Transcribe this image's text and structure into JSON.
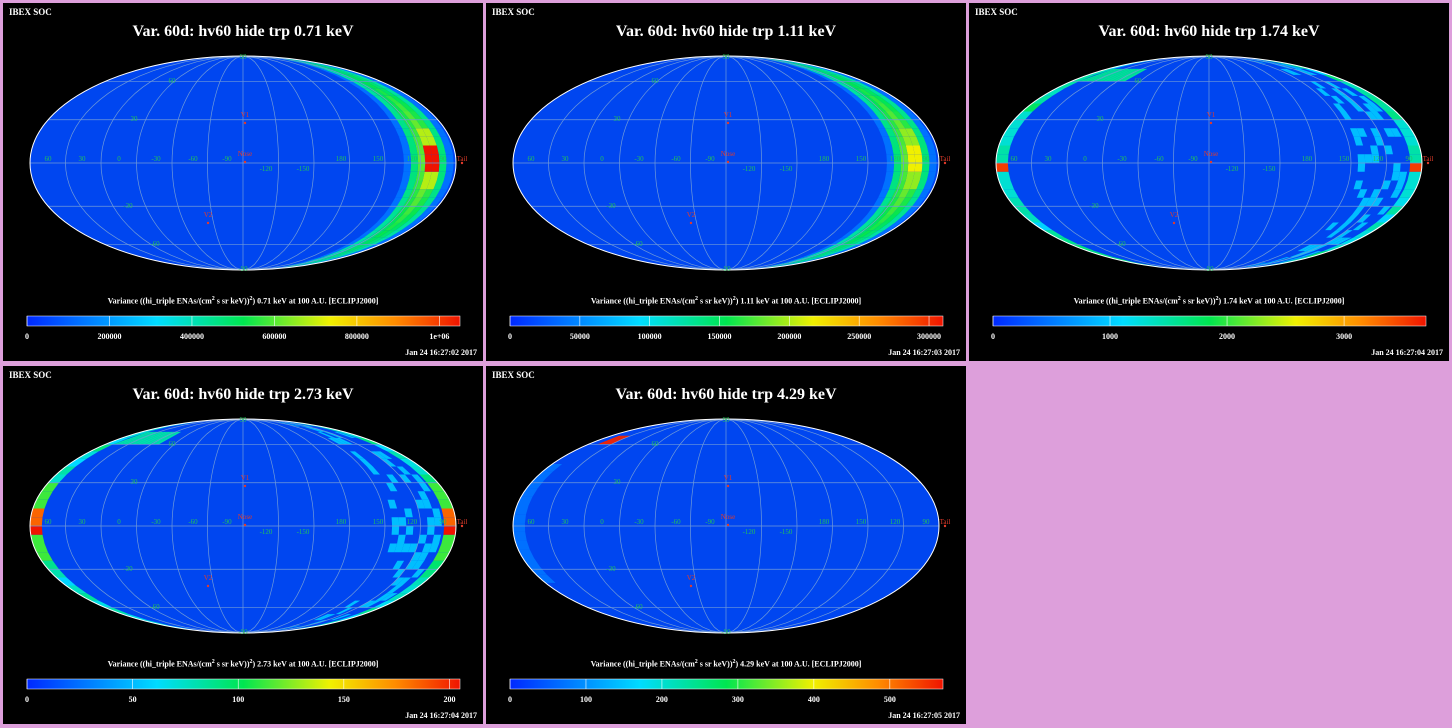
{
  "colors": {
    "background": "#dd9fdb",
    "panel": "#000000",
    "sky": "#0046f0",
    "grid_lines": "#6f9ad8",
    "grid_labels": "#22c25a",
    "markers": "#e23b2b"
  },
  "chart_data": [
    {
      "type": "heatmap",
      "header": "IBEX SOC",
      "title": "Var. 60d: hv60 hide trp 0.71 keV",
      "colorbar_label": "Variance ((hi_triple ENAs/(cm",
      "colorbar_label_sup": "2",
      "colorbar_label_mid": " s sr keV))",
      "colorbar_label_sup2": "2",
      "colorbar_label_end": ") 0.71 keV at 100 A.U. [ECLIPJ2000]",
      "colorbar_range": [
        0,
        1050000
      ],
      "colorbar_ticks": [
        0,
        200000,
        400000,
        600000,
        800000,
        1000000
      ],
      "colorbar_tick_labels": [
        "0",
        "200000",
        "400000",
        "600000",
        "800000",
        "1e+06"
      ],
      "timestamp": "Jan 24 16:27:02 2017",
      "projection": "Mollweide (all-sky)",
      "longitude_labels": [
        "60",
        "30",
        "0",
        "-30",
        "-60",
        "-90",
        "-120",
        "-150",
        "180",
        "150",
        "120",
        "90"
      ],
      "latitude_labels": [
        "60",
        "30",
        "-30",
        "-60",
        "90",
        "-90"
      ],
      "markers": [
        "V1",
        "Nose",
        "V2",
        "Tail"
      ],
      "grid": true,
      "feature": "bright ring of elevated variance along the meridian near longitude -150 to 180, peak near latitude 0"
    },
    {
      "type": "heatmap",
      "header": "IBEX SOC",
      "title": "Var. 60d: hv60 hide trp 1.11 keV",
      "colorbar_label": "Variance ((hi_triple ENAs/(cm",
      "colorbar_label_sup": "2",
      "colorbar_label_mid": " s sr keV))",
      "colorbar_label_sup2": "2",
      "colorbar_label_end": ") 1.11 keV at 100 A.U. [ECLIPJ2000]",
      "colorbar_range": [
        0,
        310000
      ],
      "colorbar_ticks": [
        0,
        50000,
        100000,
        150000,
        200000,
        250000,
        300000
      ],
      "colorbar_tick_labels": [
        "0",
        "50000",
        "100000",
        "150000",
        "200000",
        "250000",
        "300000"
      ],
      "timestamp": "Jan 24 16:27:03 2017",
      "projection": "Mollweide (all-sky)",
      "longitude_labels": [
        "60",
        "30",
        "0",
        "-30",
        "-60",
        "-90",
        "-120",
        "-150",
        "180",
        "150",
        "120",
        "90"
      ],
      "latitude_labels": [
        "60",
        "30",
        "-30",
        "-60",
        "90",
        "-90"
      ],
      "markers": [
        "V1",
        "Nose",
        "V2",
        "Tail"
      ],
      "grid": true,
      "feature": "bright ring of elevated variance along the meridian near longitude -150 to 180"
    },
    {
      "type": "heatmap",
      "header": "IBEX SOC",
      "title": "Var. 60d: hv60 hide trp 1.74 keV",
      "colorbar_label": "Variance ((hi_triple ENAs/(cm",
      "colorbar_label_sup": "2",
      "colorbar_label_mid": " s sr keV))",
      "colorbar_label_sup2": "2",
      "colorbar_label_end": ") 1.74 keV at 100 A.U. [ECLIPJ2000]",
      "colorbar_range": [
        0,
        3700
      ],
      "colorbar_ticks": [
        0,
        1000,
        2000,
        3000
      ],
      "colorbar_tick_labels": [
        "0",
        "1000",
        "2000",
        "3000"
      ],
      "timestamp": "Jan 24 16:27:04 2017",
      "projection": "Mollweide (all-sky)",
      "longitude_labels": [
        "60",
        "30",
        "0",
        "-30",
        "-60",
        "-90",
        "-120",
        "-150",
        "180",
        "150",
        "120",
        "90"
      ],
      "latitude_labels": [
        "60",
        "30",
        "-30",
        "-60",
        "90",
        "-90"
      ],
      "markers": [
        "V1",
        "Nose",
        "V2",
        "Tail"
      ],
      "grid": true,
      "feature": "elevated variance along left and right limbs of the map"
    },
    {
      "type": "heatmap",
      "header": "IBEX SOC",
      "title": "Var. 60d: hv60 hide trp 2.73 keV",
      "colorbar_label": "Variance ((hi_triple ENAs/(cm",
      "colorbar_label_sup": "2",
      "colorbar_label_mid": " s sr keV))",
      "colorbar_label_sup2": "2",
      "colorbar_label_end": ") 2.73 keV at 100 A.U. [ECLIPJ2000]",
      "colorbar_range": [
        0,
        205
      ],
      "colorbar_ticks": [
        0,
        50,
        100,
        150,
        200
      ],
      "colorbar_tick_labels": [
        "0",
        "50",
        "100",
        "150",
        "200"
      ],
      "timestamp": "Jan 24 16:27:04 2017",
      "projection": "Mollweide (all-sky)",
      "longitude_labels": [
        "60",
        "30",
        "0",
        "-30",
        "-60",
        "-90",
        "-120",
        "-150",
        "180",
        "150",
        "120",
        "90"
      ],
      "latitude_labels": [
        "60",
        "30",
        "-30",
        "-60",
        "90",
        "-90"
      ],
      "markers": [
        "V1",
        "Nose",
        "V2",
        "Tail"
      ],
      "grid": true,
      "feature": "elevated variance along left and right limbs, peak at left limb near latitude 0"
    },
    {
      "type": "heatmap",
      "header": "IBEX SOC",
      "title": "Var. 60d: hv60 hide trp 4.29 keV",
      "colorbar_label": "Variance ((hi_triple ENAs/(cm",
      "colorbar_label_sup": "2",
      "colorbar_label_mid": " s sr keV))",
      "colorbar_label_sup2": "2",
      "colorbar_label_end": ") 4.29 keV at 100 A.U. [ECLIPJ2000]",
      "colorbar_range": [
        0,
        570
      ],
      "colorbar_ticks": [
        0,
        100,
        200,
        300,
        400,
        500
      ],
      "colorbar_tick_labels": [
        "0",
        "100",
        "200",
        "300",
        "400",
        "500"
      ],
      "timestamp": "Jan 24 16:27:05 2017",
      "projection": "Mollweide (all-sky)",
      "longitude_labels": [
        "60",
        "30",
        "0",
        "-30",
        "-60",
        "-90",
        "-120",
        "-150",
        "180",
        "150",
        "120",
        "90"
      ],
      "latitude_labels": [
        "60",
        "30",
        "-30",
        "-60",
        "90",
        "-90"
      ],
      "markers": [
        "V1",
        "Nose",
        "V2",
        "Tail"
      ],
      "grid": true,
      "feature": "mostly uniform low variance, small red patch near top-left limb"
    }
  ]
}
